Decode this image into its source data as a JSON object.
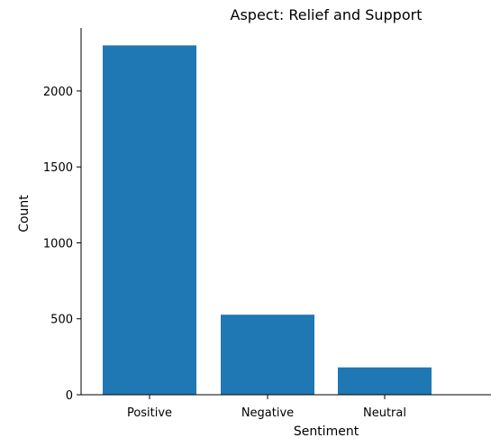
{
  "chart_data": {
    "type": "bar",
    "title": "Aspect: Relief and Support",
    "xlabel": "Sentiment",
    "ylabel": "Count",
    "categories": [
      "Positive",
      "Negative",
      "Neutral"
    ],
    "values": [
      2300,
      527,
      180
    ],
    "ylim": [
      0,
      2415
    ],
    "yticks": [
      0,
      500,
      1000,
      1500,
      2000
    ],
    "grid": false,
    "colors": {
      "bar": "#1f77b4",
      "axis": "#000000",
      "background": "#ffffff"
    }
  }
}
